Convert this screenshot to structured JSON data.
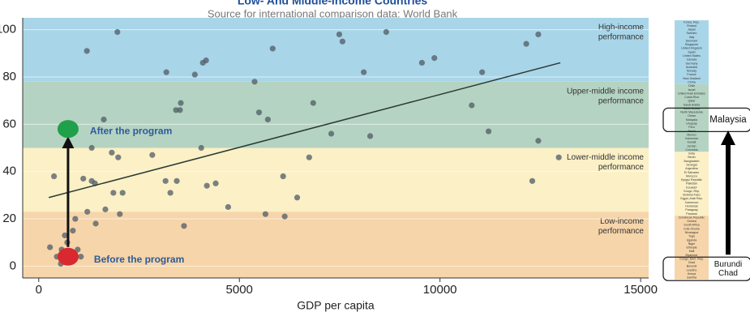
{
  "chart_data": {
    "type": "scatter",
    "title": "Low- And Middle-Income Countries",
    "subtitle": "Source for international comparison data: World Bank",
    "xlabel": "GDP per capita",
    "xlim": [
      -400,
      15200
    ],
    "ylim": [
      -5,
      105
    ],
    "xticks": [
      0,
      5000,
      10000,
      15000
    ],
    "yticks": [
      0,
      20,
      40,
      60,
      80,
      100
    ],
    "grid": true,
    "color": "#4f5b66",
    "x": [
      1200,
      1960,
      3180,
      3890,
      4090,
      4170,
      5830,
      5380,
      7490,
      7570,
      8660,
      8100,
      9550,
      9860,
      11050,
      12150,
      12450,
      3540,
      3520,
      3420,
      1620,
      5490,
      5710,
      6840,
      7290,
      8260,
      10790,
      11210,
      12450,
      12960,
      12300,
      1320,
      1820,
      1980,
      2830,
      4050,
      6740,
      380,
      1110,
      1320,
      1400,
      3160,
      3440,
      4410,
      4190,
      3280,
      1860,
      2090,
      6090,
      6440,
      4720,
      1660,
      2020,
      1210,
      910,
      1420,
      3620,
      5650,
      6130,
      850,
      650,
      710,
      280,
      570,
      970,
      450,
      730,
      1050,
      550
    ],
    "y": [
      91,
      99,
      82,
      81,
      86,
      87,
      92,
      78,
      98,
      95,
      99,
      82,
      86,
      88,
      82,
      94,
      98,
      69,
      66,
      66,
      62,
      65,
      62,
      69,
      56,
      55,
      68,
      57,
      53,
      46,
      36,
      50,
      48,
      46,
      47,
      50,
      46,
      38,
      37,
      36,
      35,
      36,
      36,
      35,
      34,
      31,
      31,
      31,
      38,
      29,
      25,
      24,
      22,
      23,
      20,
      18,
      17,
      22,
      21,
      15,
      13,
      10,
      8,
      7,
      7,
      4,
      3,
      4,
      1
    ],
    "bands": [
      {
        "from": 78,
        "to": 105,
        "color": "#a9d5e8",
        "label": [
          "High-income",
          "performance"
        ]
      },
      {
        "from": 50,
        "to": 78,
        "color": "#b5d3c2",
        "label": [
          "Upper-middle income",
          "performance"
        ]
      },
      {
        "from": 23,
        "to": 50,
        "color": "#fbf0c6",
        "label": [
          "Lower-middle income",
          "performance"
        ]
      },
      {
        "from": -5,
        "to": 23,
        "color": "#f6d5aa",
        "label": [
          "Low-income",
          "performance"
        ]
      }
    ],
    "trend": {
      "x": [
        250,
        13000
      ],
      "y": [
        29,
        86
      ],
      "color": "#2b3a33"
    },
    "annotations": [
      {
        "label": "After the program",
        "x": 730,
        "y": 58,
        "color": "#1fa04a"
      },
      {
        "label": "Before the program",
        "x": 730,
        "y": 4,
        "color": "#d9282f"
      }
    ]
  },
  "ranking": {
    "groups": [
      {
        "color": "#a9d5e8",
        "names": [
          "Korea, Rep.",
          "Finland",
          "Japan",
          "Sweden",
          "Italy",
          "Denmark",
          "Singapore",
          "United Kingdom",
          "Spain",
          "United States",
          "Canada",
          "Germany",
          "Australia",
          "Norway",
          "France",
          "New Zealand",
          "China"
        ]
      },
      {
        "color": "#b5d3c2",
        "names": [
          "Chile",
          "Israel",
          "United Arab Emirates",
          "Costa Rica",
          "Qatar",
          "Saudi Arabia",
          "South Arabia",
          "North Macedonia",
          "Oman",
          "Malaysia",
          "Uruguay",
          "Peru",
          "Brazil",
          "Mexico",
          "Indonesia",
          "Kuwait",
          "Jordan",
          "Colombia"
        ]
      },
      {
        "color": "#fbf0c6",
        "names": [
          "India",
          "Benin",
          "Bangladesh",
          "Senegal",
          "Argentina",
          "El Salvador",
          "Morocco",
          "Kyrgyz Republic",
          "Pakistan",
          "Ecuador",
          "Congo, Rep.",
          "Burkina Faso",
          "Egypt, Arab Rep.",
          "Cameroon",
          "Honduras",
          "Paraguay",
          "Panama"
        ]
      },
      {
        "color": "#f6d5aa",
        "names": [
          "Dominican Republic",
          "Guinea",
          "South Africa",
          "Cote d'Ivoire",
          "Nicaragua",
          "Togo",
          "Uganda",
          "Niger",
          "Ethiopia",
          "Mali",
          "Myanmar",
          "Congo, Dem. Rep.",
          "Chad",
          "Burundi",
          "Lesotho",
          "Kenya",
          "Zambia"
        ]
      }
    ],
    "callouts": [
      [
        "Malaysia"
      ],
      [
        "Burundi",
        "Chad"
      ]
    ]
  }
}
